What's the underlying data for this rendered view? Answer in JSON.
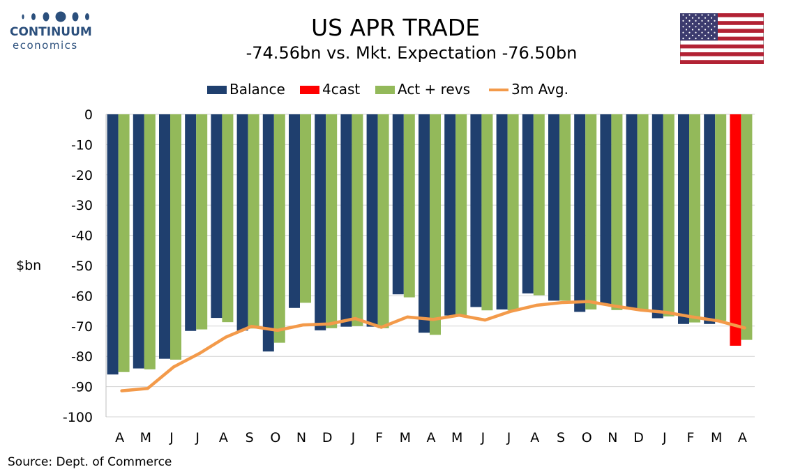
{
  "header": {
    "title": "US APR TRADE",
    "subtitle": "-74.56bn vs. Mkt. Expectation -76.50bn",
    "logo_line1": "CONTINUUM",
    "logo_line2": "economics",
    "flag": "us-flag-icon"
  },
  "footer": {
    "source": "Source: Dept. of Commerce"
  },
  "colors": {
    "balance": "#1f3f6e",
    "forecast": "#ff0000",
    "act_revs": "#93b95a",
    "avg3m": "#f39a4a",
    "grid": "#d4d4d4",
    "logo": "#2b4f7c"
  },
  "chart_data": {
    "type": "bar",
    "categories": [
      "A",
      "M",
      "J",
      "J",
      "A",
      "S",
      "O",
      "N",
      "D",
      "J",
      "F",
      "M",
      "A",
      "M",
      "J",
      "J",
      "A",
      "S",
      "O",
      "N",
      "D",
      "J",
      "F",
      "M",
      "A"
    ],
    "series": [
      {
        "name": "Balance",
        "kind": "bar",
        "values": [
          -86.0,
          -84.0,
          -80.8,
          -71.6,
          -67.3,
          -71.5,
          -78.4,
          -64.0,
          -71.4,
          -70.2,
          -70.2,
          -59.5,
          -72.2,
          -66.5,
          -63.7,
          -64.5,
          -59.2,
          -61.6,
          -65.3,
          -63.0,
          -64.5,
          -67.4,
          -69.3,
          -69.3,
          null
        ]
      },
      {
        "name": "4cast",
        "kind": "bar",
        "values": [
          null,
          null,
          null,
          null,
          null,
          null,
          null,
          null,
          null,
          null,
          null,
          null,
          null,
          null,
          null,
          null,
          null,
          null,
          null,
          null,
          null,
          null,
          null,
          null,
          -76.5
        ]
      },
      {
        "name": "Act + revs",
        "kind": "bar",
        "values": [
          -85.2,
          -84.3,
          -81.1,
          -71.1,
          -68.7,
          -70.8,
          -75.5,
          -62.3,
          -70.7,
          -70.0,
          -70.7,
          -60.5,
          -72.9,
          -66.4,
          -64.8,
          -64.8,
          -59.8,
          -61.6,
          -64.5,
          -64.7,
          -64.6,
          -66.8,
          -68.8,
          -68.3,
          -74.56
        ]
      },
      {
        "name": "3m Avg.",
        "kind": "line",
        "values": [
          -91.4,
          -90.6,
          -83.5,
          -79.0,
          -73.7,
          -70.1,
          -71.4,
          -69.6,
          -69.3,
          -67.5,
          -70.4,
          -67.0,
          -67.8,
          -66.4,
          -68.0,
          -65.1,
          -63.1,
          -62.2,
          -61.9,
          -63.4,
          -64.7,
          -65.5,
          -67.0,
          -68.3,
          -70.6
        ]
      }
    ],
    "xlabel": "",
    "ylabel": "$bn",
    "ylim": [
      -100,
      0
    ],
    "yticks": [
      0,
      -10,
      -20,
      -30,
      -40,
      -50,
      -60,
      -70,
      -80,
      -90,
      -100
    ],
    "grid": true,
    "legend": "top-center"
  }
}
